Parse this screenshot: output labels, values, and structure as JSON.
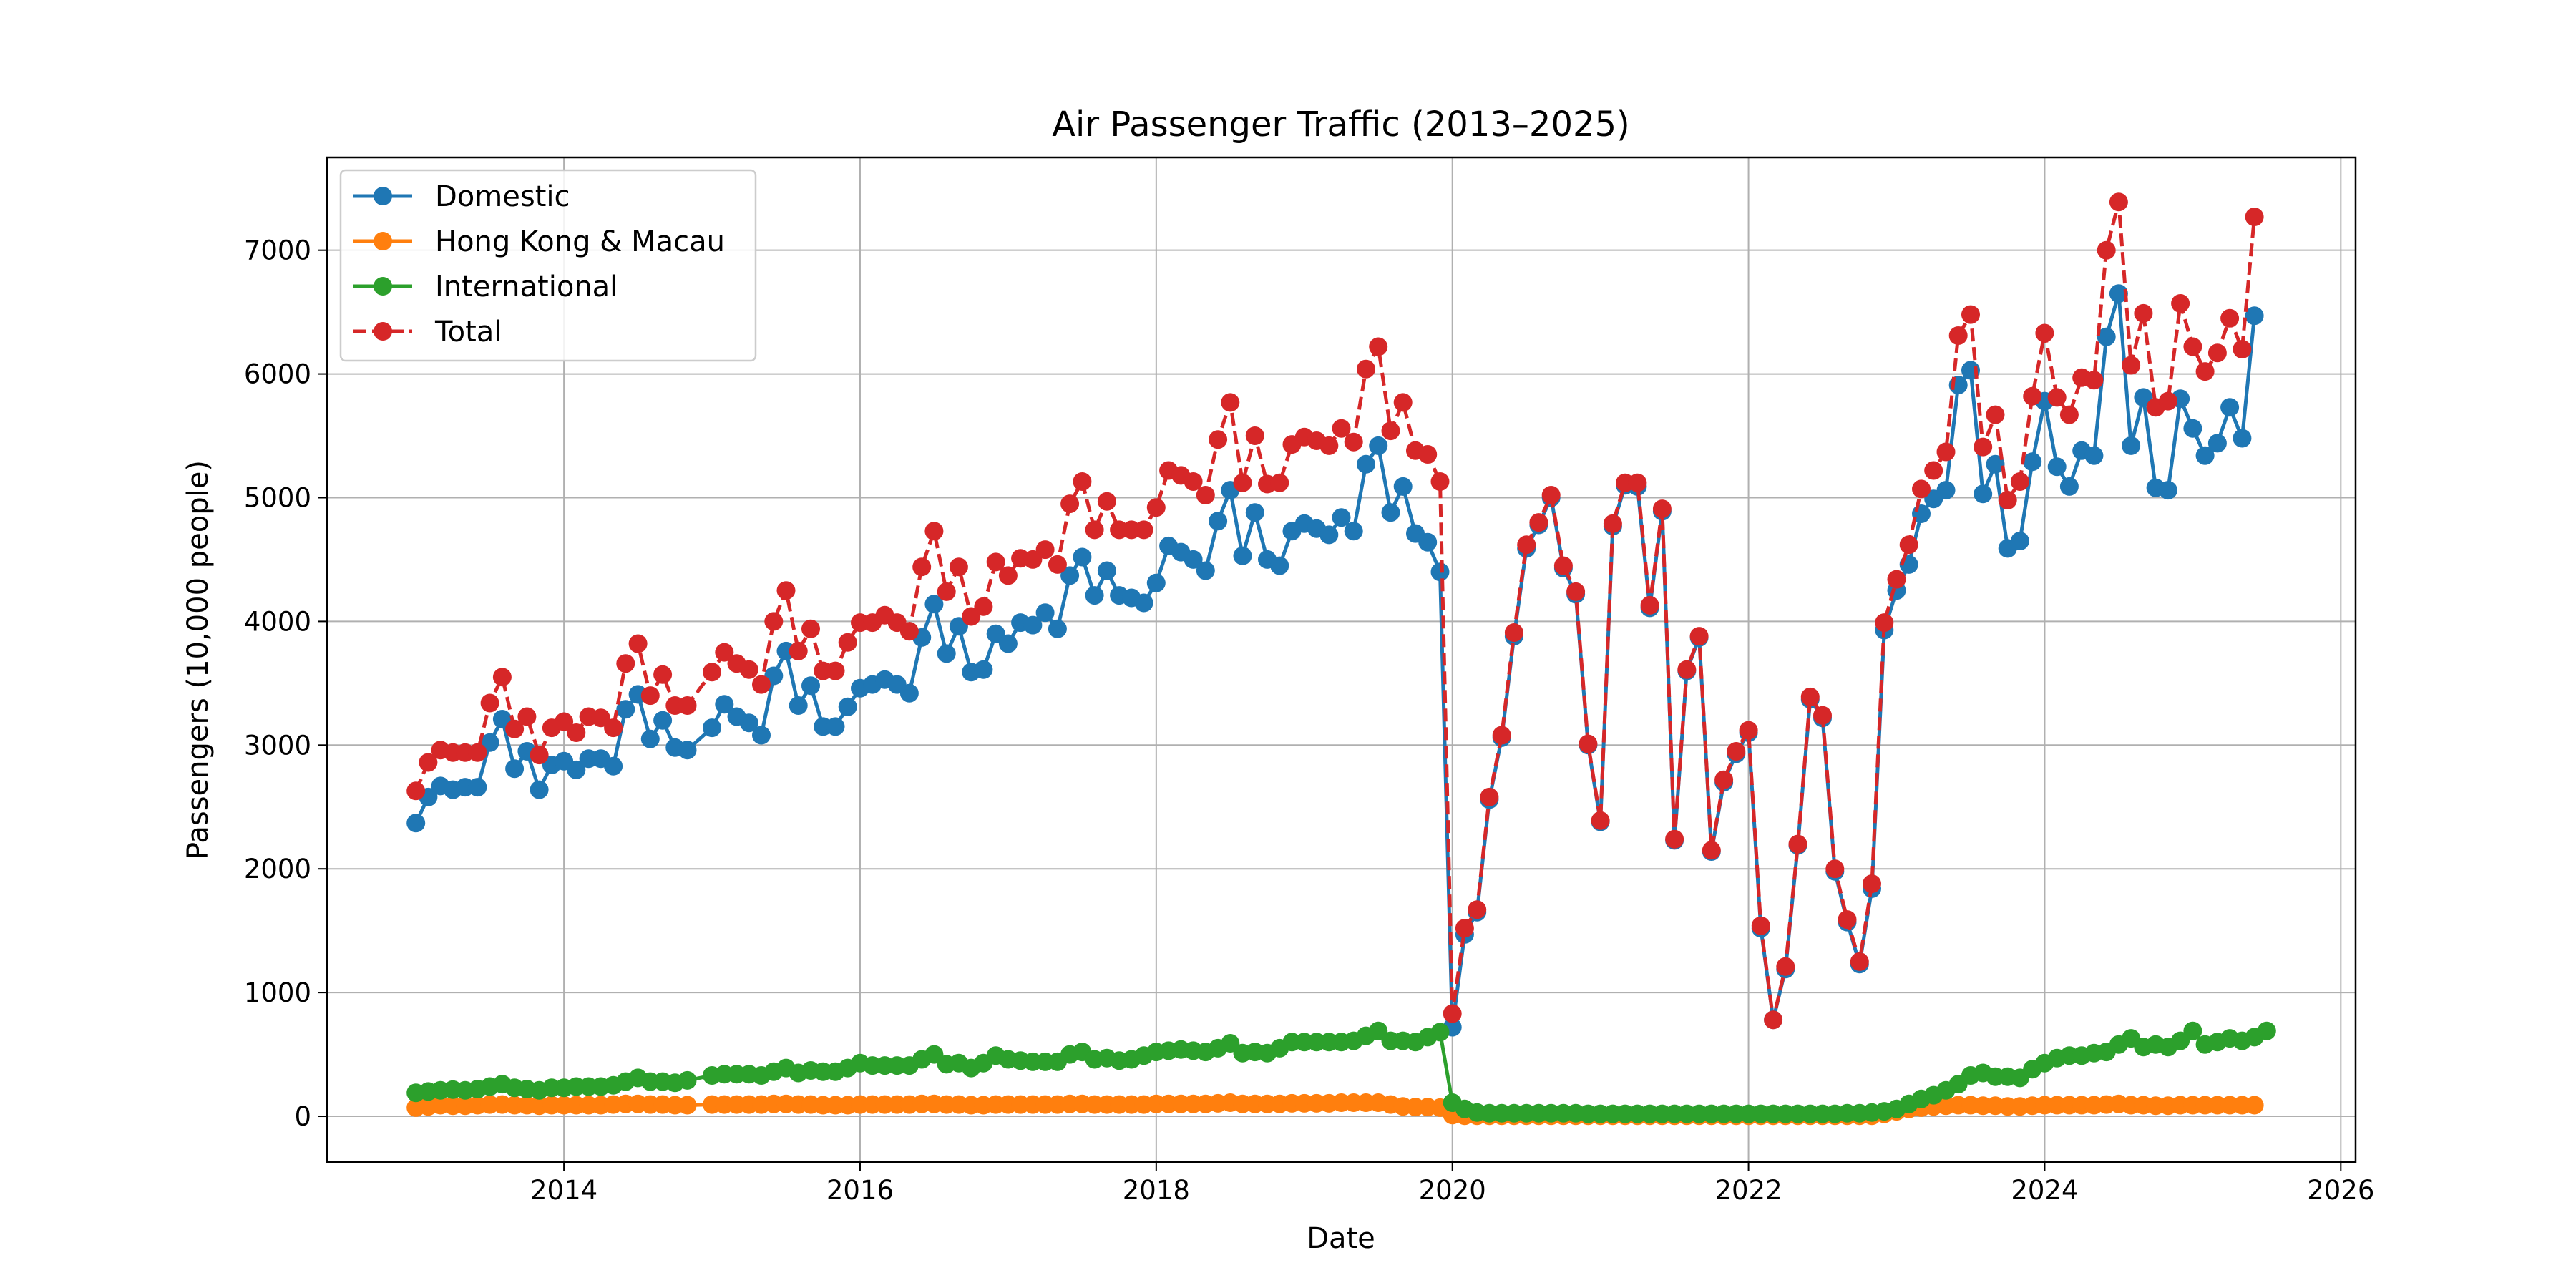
{
  "chart_data": {
    "type": "line",
    "title": "Air Passenger Traffic (2013–2025)",
    "xlabel": "Date",
    "ylabel": "Passengers (10,000 people)",
    "xlim": [
      2012.4,
      2026.1
    ],
    "ylim": [
      -370,
      7750
    ],
    "grid": true,
    "legend_position": "top-left",
    "x_ticks": [
      2014,
      2016,
      2018,
      2020,
      2022,
      2024,
      2026
    ],
    "x_tick_labels": [
      "2014",
      "2016",
      "2018",
      "2020",
      "2022",
      "2024",
      "2026"
    ],
    "y_ticks": [
      0,
      1000,
      2000,
      3000,
      4000,
      5000,
      6000,
      7000
    ],
    "y_tick_labels": [
      "0",
      "1000",
      "2000",
      "3000",
      "4000",
      "5000",
      "6000",
      "7000"
    ],
    "x_start": "2013-01",
    "x_end": "2025-07",
    "missing_month": "2014-12",
    "series": [
      {
        "name": "Domestic",
        "color": "#1f77b4",
        "linestyle": "solid",
        "values": [
          2370,
          2580,
          2670,
          2640,
          2660,
          2660,
          3020,
          3210,
          2810,
          2950,
          2640,
          2840,
          2870,
          2800,
          2890,
          2890,
          2830,
          3290,
          3410,
          3050,
          3200,
          2980,
          2960,
          3140,
          3330,
          3230,
          3180,
          3080,
          3560,
          3760,
          3320,
          3480,
          3150,
          3150,
          3310,
          3460,
          3490,
          3530,
          3490,
          3420,
          3870,
          4140,
          3740,
          3960,
          3590,
          3610,
          3900,
          3820,
          3990,
          3970,
          4070,
          3940,
          4370,
          4520,
          4210,
          4410,
          4210,
          4190,
          4150,
          4310,
          4610,
          4560,
          4500,
          4410,
          4810,
          5060,
          4530,
          4880,
          4500,
          4450,
          4730,
          4790,
          4750,
          4700,
          4840,
          4730,
          5270,
          5420,
          4880,
          5090,
          4710,
          4640,
          4400,
          720,
          1470,
          1650,
          2560,
          3060,
          3880,
          4590,
          4780,
          5000,
          4430,
          4220,
          3000,
          2380,
          4770,
          5100,
          5090,
          4110,
          4890,
          2230,
          3600,
          3870,
          2140,
          2700,
          2930,
          3100,
          1520,
          780,
          1190,
          2190,
          3370,
          3220,
          1980,
          1570,
          1230,
          1840,
          3930,
          4250,
          4460,
          4870,
          4990,
          5060,
          5910,
          6030,
          5030,
          5270,
          4590,
          4650,
          5290,
          5780,
          5250,
          5090,
          5380,
          5340,
          6300,
          6650,
          5420,
          5810,
          5080,
          5060,
          5800,
          5560,
          5340,
          5440,
          5730,
          5480,
          6470
        ]
      },
      {
        "name": "Hong Kong & Macau",
        "color": "#ff7f0e",
        "linestyle": "solid",
        "values": [
          70,
          80,
          90,
          85,
          85,
          90,
          95,
          95,
          90,
          90,
          85,
          90,
          90,
          90,
          90,
          90,
          95,
          100,
          100,
          95,
          95,
          90,
          90,
          95,
          95,
          95,
          95,
          95,
          100,
          100,
          95,
          95,
          90,
          90,
          90,
          95,
          95,
          95,
          95,
          95,
          100,
          100,
          95,
          95,
          90,
          90,
          95,
          95,
          95,
          95,
          95,
          95,
          100,
          100,
          95,
          95,
          95,
          95,
          95,
          100,
          100,
          100,
          100,
          100,
          105,
          110,
          100,
          100,
          100,
          100,
          105,
          105,
          105,
          105,
          110,
          110,
          110,
          110,
          95,
          80,
          75,
          75,
          70,
          10,
          5,
          5,
          5,
          5,
          5,
          5,
          5,
          5,
          5,
          5,
          5,
          5,
          5,
          5,
          5,
          5,
          5,
          5,
          5,
          5,
          5,
          5,
          5,
          5,
          5,
          5,
          5,
          5,
          5,
          5,
          5,
          5,
          5,
          5,
          20,
          40,
          60,
          70,
          80,
          85,
          90,
          90,
          85,
          85,
          80,
          80,
          85,
          90,
          90,
          90,
          90,
          90,
          95,
          100,
          90,
          90,
          85,
          85,
          90,
          90,
          90,
          90,
          90,
          90,
          90
        ]
      },
      {
        "name": "International",
        "color": "#2ca02c",
        "linestyle": "solid",
        "values": [
          190,
          200,
          210,
          215,
          210,
          220,
          240,
          260,
          230,
          220,
          210,
          230,
          230,
          240,
          240,
          240,
          250,
          280,
          310,
          280,
          280,
          270,
          290,
          330,
          340,
          340,
          340,
          330,
          360,
          390,
          350,
          370,
          360,
          360,
          390,
          430,
          410,
          410,
          410,
          410,
          460,
          500,
          420,
          430,
          390,
          430,
          490,
          460,
          450,
          440,
          440,
          440,
          500,
          520,
          460,
          470,
          450,
          460,
          490,
          520,
          530,
          540,
          530,
          520,
          550,
          590,
          510,
          520,
          510,
          550,
          600,
          600,
          600,
          600,
          600,
          610,
          650,
          690,
          610,
          610,
          600,
          640,
          680,
          110,
          60,
          30,
          25,
          25,
          25,
          25,
          25,
          25,
          25,
          25,
          20,
          20,
          20,
          20,
          20,
          20,
          20,
          20,
          20,
          20,
          20,
          20,
          20,
          20,
          20,
          20,
          20,
          20,
          20,
          20,
          20,
          25,
          25,
          30,
          40,
          60,
          100,
          140,
          170,
          210,
          260,
          330,
          350,
          320,
          320,
          310,
          380,
          430,
          470,
          490,
          490,
          510,
          520,
          580,
          630,
          560,
          580,
          560,
          610,
          690,
          580,
          600,
          630,
          610,
          640,
          690
        ]
      },
      {
        "name": "Total",
        "color": "#d62728",
        "linestyle": "dashed",
        "values": [
          2630,
          2860,
          2960,
          2940,
          2940,
          2940,
          3340,
          3550,
          3130,
          3230,
          2920,
          3140,
          3190,
          3100,
          3230,
          3220,
          3140,
          3660,
          3820,
          3400,
          3570,
          3320,
          3320,
          3590,
          3750,
          3660,
          3610,
          3490,
          4000,
          4250,
          3760,
          3940,
          3600,
          3600,
          3830,
          3990,
          3990,
          4050,
          3990,
          3920,
          4440,
          4730,
          4240,
          4440,
          4040,
          4120,
          4480,
          4370,
          4510,
          4500,
          4580,
          4460,
          4950,
          5130,
          4740,
          4970,
          4740,
          4740,
          4740,
          4920,
          5220,
          5180,
          5130,
          5020,
          5470,
          5770,
          5120,
          5500,
          5110,
          5120,
          5430,
          5490,
          5460,
          5420,
          5560,
          5450,
          6040,
          6220,
          5540,
          5770,
          5380,
          5350,
          5130,
          830,
          1520,
          1670,
          2580,
          3080,
          3910,
          4620,
          4800,
          5020,
          4450,
          4240,
          3010,
          2390,
          4790,
          5120,
          5120,
          4130,
          4910,
          2240,
          3610,
          3880,
          2150,
          2720,
          2950,
          3120,
          1540,
          780,
          1210,
          2200,
          3390,
          3240,
          2000,
          1590,
          1250,
          1880,
          3990,
          4340,
          4620,
          5070,
          5220,
          5370,
          6310,
          6480,
          5410,
          5670,
          4980,
          5130,
          5820,
          6330,
          5810,
          5670,
          5970,
          5950,
          7000,
          7390,
          6070,
          6490,
          5730,
          5780,
          6570,
          6220,
          6020,
          6170,
          6450,
          6200,
          7270
        ]
      }
    ]
  }
}
